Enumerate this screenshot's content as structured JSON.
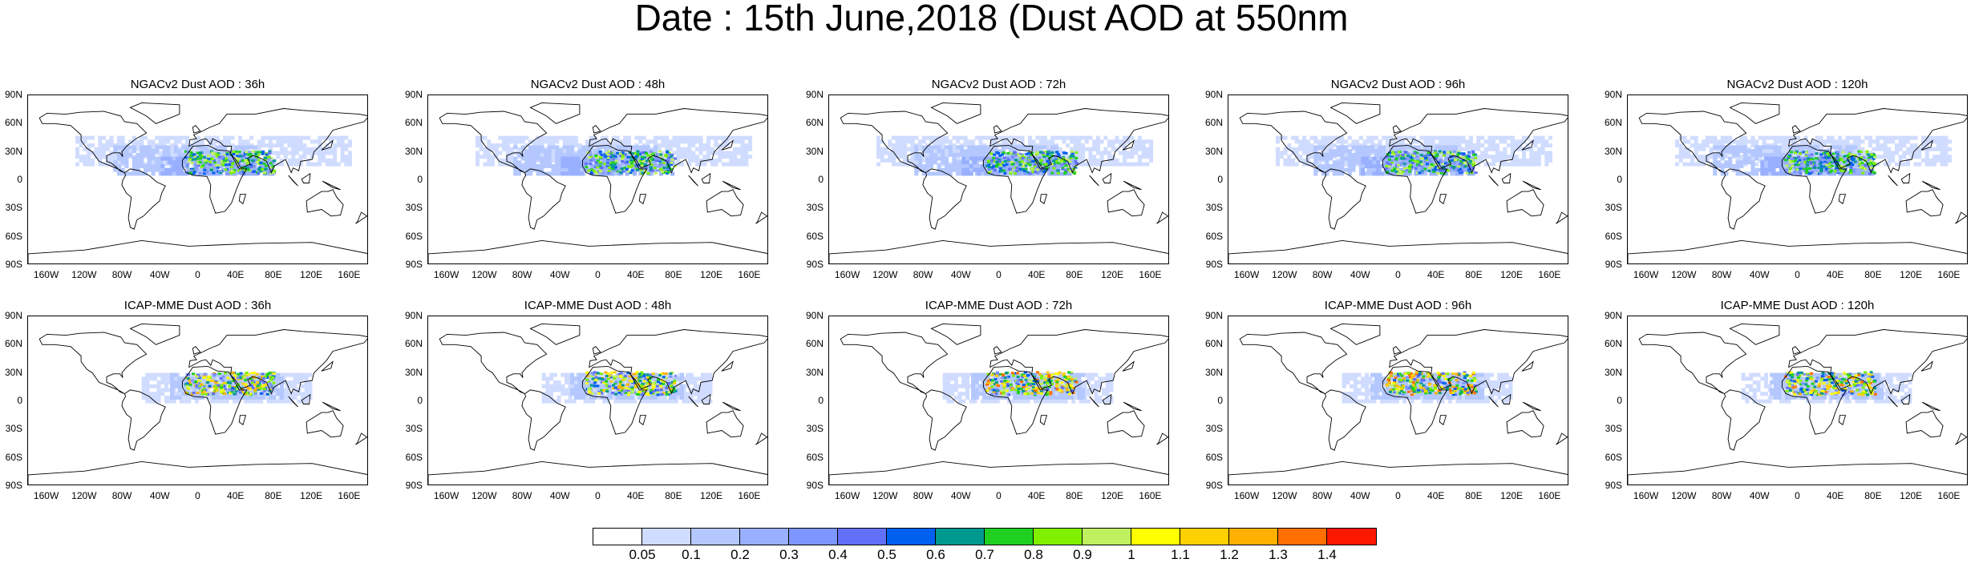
{
  "title": "Date : 15th June,2018 (Dust AOD at 550nm",
  "lat_labels": [
    "90N",
    "60N",
    "30N",
    "0",
    "30S",
    "60S",
    "90S"
  ],
  "lon_labels": [
    "160W",
    "120W",
    "80W",
    "40W",
    "0",
    "40E",
    "80E",
    "120E",
    "160E"
  ],
  "panels": [
    {
      "title": "NGACv2 Dust AOD : 36h",
      "model": "NGACv2",
      "lead_hours": 36,
      "intensity": 1
    },
    {
      "title": "NGACv2 Dust AOD : 48h",
      "model": "NGACv2",
      "lead_hours": 48,
      "intensity": 1
    },
    {
      "title": "NGACv2 Dust AOD : 72h",
      "model": "NGACv2",
      "lead_hours": 72,
      "intensity": 1
    },
    {
      "title": "NGACv2 Dust AOD : 96h",
      "model": "NGACv2",
      "lead_hours": 96,
      "intensity": 1
    },
    {
      "title": "NGACv2 Dust AOD : 120h",
      "model": "NGACv2",
      "lead_hours": 120,
      "intensity": 1
    },
    {
      "title": "ICAP-MME Dust AOD : 36h",
      "model": "ICAP-MME",
      "lead_hours": 36,
      "intensity": 2
    },
    {
      "title": "ICAP-MME Dust AOD : 48h",
      "model": "ICAP-MME",
      "lead_hours": 48,
      "intensity": 2
    },
    {
      "title": "ICAP-MME Dust AOD : 72h",
      "model": "ICAP-MME",
      "lead_hours": 72,
      "intensity": 3
    },
    {
      "title": "ICAP-MME Dust AOD : 96h",
      "model": "ICAP-MME",
      "lead_hours": 96,
      "intensity": 3
    },
    {
      "title": "ICAP-MME Dust AOD : 120h",
      "model": "ICAP-MME",
      "lead_hours": 120,
      "intensity": 3
    }
  ],
  "colorbar": {
    "labels": [
      "0.05",
      "0.1",
      "0.2",
      "0.3",
      "0.4",
      "0.5",
      "0.6",
      "0.7",
      "0.8",
      "0.9",
      "1",
      "1.1",
      "1.2",
      "1.3",
      "1.4"
    ],
    "colors": [
      "#ffffff",
      "#d0dcff",
      "#b4c8ff",
      "#98b0ff",
      "#7e96ff",
      "#6270f8",
      "#0060f0",
      "#00998f",
      "#20d020",
      "#80f000",
      "#c0f060",
      "#ffff00",
      "#ffd000",
      "#ffb000",
      "#ff7000",
      "#ff1800"
    ]
  },
  "colors": {
    "ocean": "#ffffff",
    "coast": "#000000"
  }
}
